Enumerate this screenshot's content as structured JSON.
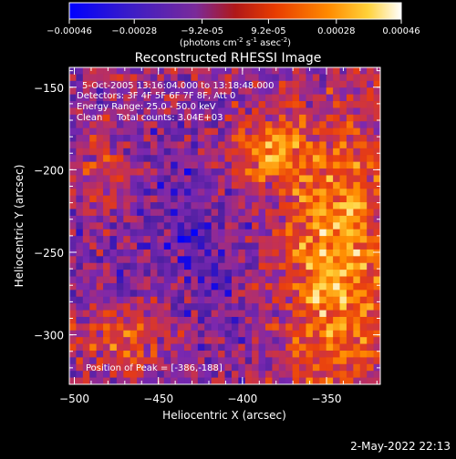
{
  "colorbar": {
    "ticks": [
      "-0.00046",
      "-0.00028",
      "-9.2e-05",
      "9.2e-05",
      "0.00028",
      "0.00046"
    ],
    "tick_values": [
      -0.00046,
      -0.00028,
      -9.2e-05,
      9.2e-05,
      0.00028,
      0.00046
    ],
    "range": [
      -0.00046,
      0.00046
    ],
    "units_main": "(photons cm",
    "units_sup1": "-2",
    "units_mid": " s",
    "units_sup2": "-1",
    "units_end": " asec",
    "units_sup3": "-2",
    "units_close": ")"
  },
  "chart_data": {
    "type": "heatmap",
    "title": "Reconstructed RHESSI Image",
    "xlabel": "Heliocentric X (arcsec)",
    "ylabel": "Heliocentric Y (arcsec)",
    "xlim": [
      -503,
      -318
    ],
    "ylim": [
      -330,
      -138
    ],
    "xticks": [
      -500,
      -450,
      -400,
      -350
    ],
    "yticks": [
      -150,
      -200,
      -250,
      -300
    ],
    "colormap": [
      "#0000ff",
      "#4b1fa0",
      "#7a28b0",
      "#c0305a",
      "#e83c10",
      "#ff8a00",
      "#ffd23a",
      "#ffffff"
    ],
    "annotations": [
      "5-Oct-2005 13:16:04.000 to 13:18:48.000",
      "Detectors: 3F 4F 5F 6F 7F 8F, Att 0",
      "Energy Range: 25.0 - 50.0 keV",
      "Clean     Total counts: 3.04E+03"
    ],
    "peak_label": "Position of Peak = [-386,-188]",
    "peak": [
      -386,
      -188
    ]
  },
  "footer": {
    "timestamp": "2-May-2022 22:13"
  }
}
